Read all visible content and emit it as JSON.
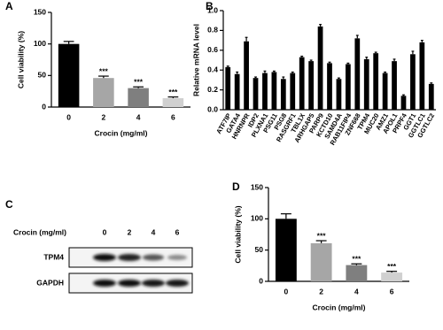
{
  "chart_data": [
    {
      "type": "bar",
      "panel": "A",
      "ylabel": "Cell viability (%)",
      "xlabel": "Crocin (mg/ml)",
      "categories": [
        "0",
        "2",
        "4",
        "6"
      ],
      "values": [
        100,
        46,
        30,
        14
      ],
      "errors": [
        4,
        3,
        2,
        2
      ],
      "colors": [
        "#000000",
        "#a6a6a6",
        "#7f7f7f",
        "#d0d0d0"
      ],
      "annotations": [
        null,
        "***",
        "***",
        "***"
      ],
      "ylim": [
        0,
        150
      ],
      "yticks": [
        0,
        50,
        100,
        150
      ]
    },
    {
      "type": "bar",
      "panel": "B",
      "ylabel": "Relative mRNA level",
      "categories": [
        "ATF7IP",
        "GATA4",
        "HNRNPR",
        "IDP2",
        "PLXNA1",
        "PSG11",
        "PSG8",
        "RASGRF1",
        "TBL1X",
        "ARHGAP5",
        "PARP9",
        "KCTD10",
        "SAMD4A",
        "RAB11FIP4",
        "ZNF668",
        "TPM4",
        "MUC20",
        "AMZ1",
        "APOL1",
        "PRPF4",
        "GGT1",
        "GGTLC1",
        "GGTLC2"
      ],
      "values": [
        0.43,
        0.36,
        0.69,
        0.32,
        0.37,
        0.38,
        0.31,
        0.37,
        0.53,
        0.49,
        0.84,
        0.47,
        0.31,
        0.46,
        0.72,
        0.51,
        0.57,
        0.37,
        0.49,
        0.14,
        0.56,
        0.68,
        0.26
      ],
      "errors": [
        0.01,
        0.02,
        0.04,
        0.01,
        0.02,
        0.01,
        0.02,
        0.01,
        0.01,
        0.01,
        0.02,
        0.01,
        0.01,
        0.01,
        0.03,
        0.02,
        0.01,
        0.01,
        0.02,
        0.01,
        0.03,
        0.02,
        0.01
      ],
      "color": "#000000",
      "ylim": [
        0,
        1
      ],
      "yticks": [
        {
          "value": 0,
          "label": "0.0"
        },
        0.2,
        0.4,
        0.6,
        0.8,
        {
          "value": 1,
          "label": "1.0"
        }
      ]
    },
    {
      "type": "bar",
      "panel": "D",
      "ylabel": "Cell viability (%)",
      "xlabel": "Crocin (mg/ml)",
      "categories": [
        "0",
        "2",
        "4",
        "6"
      ],
      "values": [
        100,
        61,
        26,
        14
      ],
      "errors": [
        8,
        4,
        2,
        2
      ],
      "colors": [
        "#000000",
        "#a6a6a6",
        "#7f7f7f",
        "#d0d0d0"
      ],
      "annotations": [
        null,
        "***",
        "***",
        "***"
      ],
      "ylim": [
        0,
        150
      ],
      "yticks": [
        0,
        50,
        100,
        150
      ]
    }
  ],
  "blot": {
    "panel": "C",
    "title": "Crocin (mg/ml)",
    "lanes": [
      "0",
      "2",
      "4",
      "6"
    ],
    "rows": [
      "TPM4",
      "GAPDH"
    ]
  }
}
